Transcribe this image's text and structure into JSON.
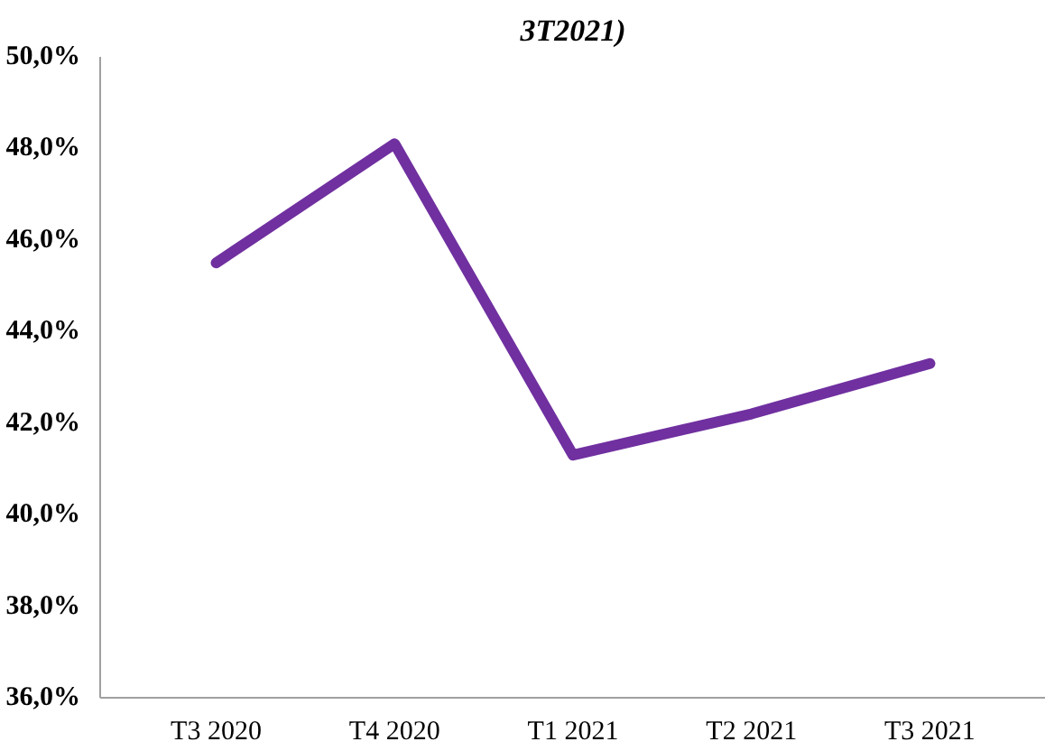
{
  "chart_data": {
    "type": "line",
    "title": "3T2021)",
    "categories": [
      "T3 2020",
      "T4 2020",
      "T1 2021",
      "T2 2021",
      "T3 2021"
    ],
    "series": [
      {
        "color": "#7030a0",
        "values": [
          45.5,
          48.1,
          41.3,
          42.2,
          43.3
        ]
      }
    ],
    "ylim": [
      36,
      50
    ],
    "yticks": [
      {
        "value": 36,
        "label": "36,0%"
      },
      {
        "value": 38,
        "label": "38,0%"
      },
      {
        "value": 40,
        "label": "40,0%"
      },
      {
        "value": 42,
        "label": "42,0%"
      },
      {
        "value": 44,
        "label": "44,0%"
      },
      {
        "value": 46,
        "label": "46,0%"
      },
      {
        "value": 48,
        "label": "48,0%"
      },
      {
        "value": 50,
        "label": "50,0%"
      }
    ],
    "grid": false,
    "marker": "none",
    "line_style": "solid"
  }
}
